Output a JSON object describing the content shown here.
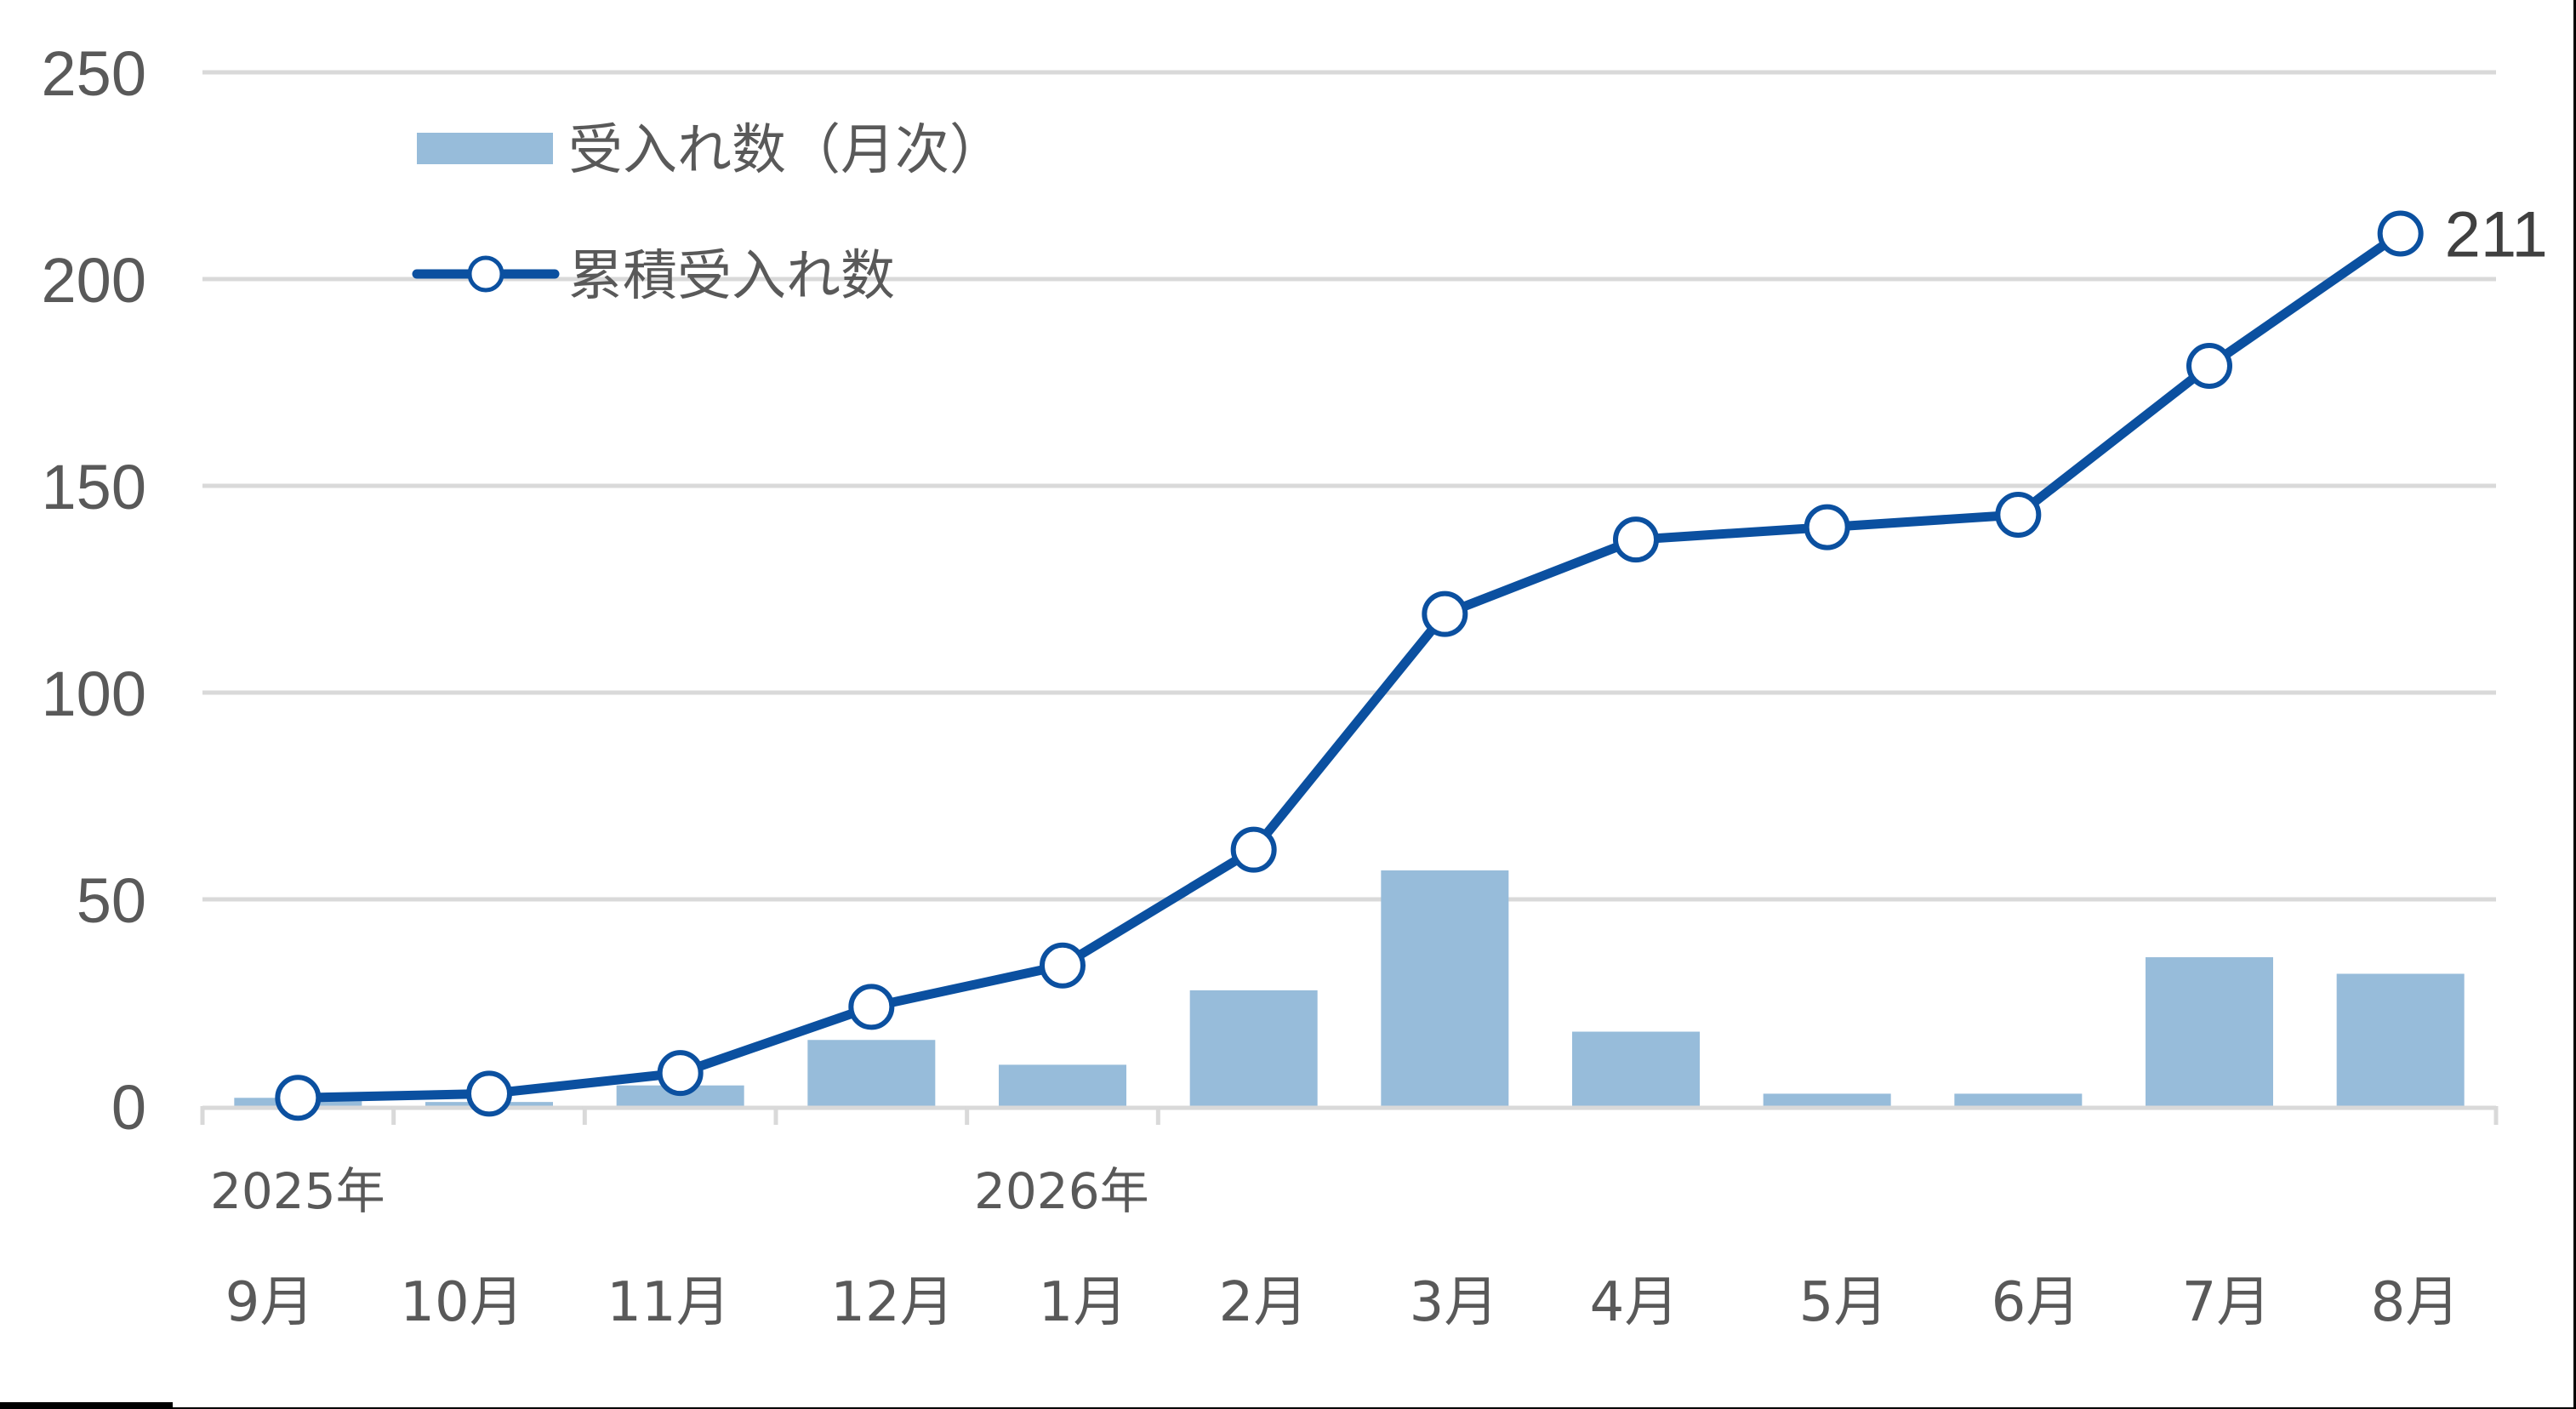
{
  "chart_data": {
    "type": "bar+line",
    "title": "",
    "xlabel": "",
    "ylabel": "",
    "ylim": [
      0,
      250
    ],
    "yticks": [
      0,
      50,
      100,
      150,
      200,
      250
    ],
    "grid": true,
    "legend_position": "top-left (inside plot)",
    "categories": [
      "9月",
      "10月",
      "11月",
      "12月",
      "1月",
      "2月",
      "3月",
      "4月",
      "5月",
      "6月",
      "7月",
      "8月"
    ],
    "category_groups": [
      {
        "label": "2025年",
        "start_index": 0
      },
      {
        "label": "2026年",
        "start_index": 4
      }
    ],
    "series": [
      {
        "name": "受入れ数（月次）",
        "type": "bar",
        "color": "#97BCDA",
        "values": [
          2,
          1,
          5,
          16,
          10,
          28,
          57,
          18,
          3,
          3,
          36,
          32
        ]
      },
      {
        "name": "累積受入れ数",
        "type": "line",
        "color": "#0B50A0",
        "marker": "open-circle",
        "values": [
          2,
          3,
          8,
          24,
          34,
          62,
          119,
          137,
          140,
          143,
          179,
          211
        ]
      }
    ],
    "annotations": [
      {
        "series": "累積受入れ数",
        "index": 11,
        "text": "211"
      }
    ]
  },
  "legend": {
    "bar_label": "受入れ数（月次）",
    "line_label": "累積受入れ数"
  },
  "colors": {
    "bar": "#97BCDA",
    "line": "#0B50A0",
    "grid": "#D9D9D9",
    "text": "#595959"
  }
}
